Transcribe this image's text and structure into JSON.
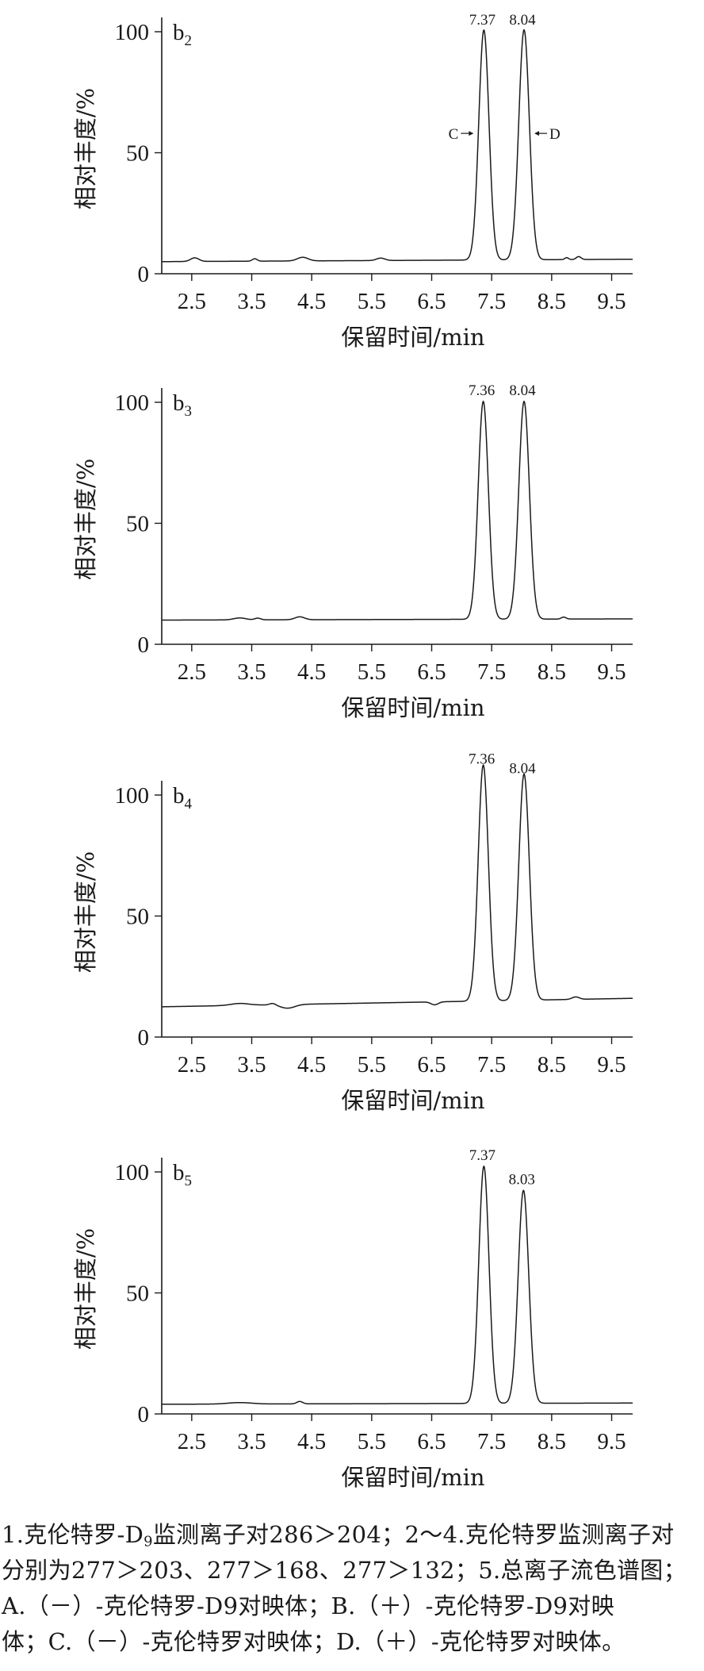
{
  "chart_data": [
    {
      "type": "line",
      "panel_label": "b",
      "panel_sub": "2",
      "xlabel": "保留时间/min",
      "ylabel": "相对丰度/%",
      "xlim": [
        2.0,
        9.85
      ],
      "ylim": [
        0,
        100
      ],
      "xticks": [
        2.5,
        3.5,
        4.5,
        5.5,
        6.5,
        7.5,
        8.5,
        9.5
      ],
      "xtick_labels": [
        "2.5",
        "3.5",
        "4.5",
        "5.5",
        "6.5",
        "7.5",
        "8.5",
        "9.5"
      ],
      "yticks": [
        0,
        50,
        100
      ],
      "ytick_labels": [
        "0",
        "50",
        "100"
      ],
      "baseline": 5,
      "end_level": 6,
      "bumps": [
        [
          2.55,
          1.5,
          0.07
        ],
        [
          3.55,
          1.0,
          0.04
        ],
        [
          4.35,
          1.5,
          0.09
        ],
        [
          5.65,
          1.0,
          0.07
        ],
        [
          8.75,
          0.8,
          0.03
        ],
        [
          8.95,
          1.2,
          0.04
        ]
      ],
      "peaks": [
        {
          "rt": 7.37,
          "label": "7.37",
          "height": 100
        },
        {
          "rt": 8.04,
          "label": "8.04",
          "height": 100
        }
      ],
      "annotations": [
        {
          "text": "C",
          "x": 7.37,
          "y": 58,
          "side": "left"
        },
        {
          "text": "D",
          "x": 8.04,
          "y": 58,
          "side": "right"
        }
      ]
    },
    {
      "type": "line",
      "panel_label": "b",
      "panel_sub": "3",
      "xlabel": "保留时间/min",
      "ylabel": "相对丰度/%",
      "xlim": [
        2.0,
        9.85
      ],
      "ylim": [
        0,
        100
      ],
      "xticks": [
        2.5,
        3.5,
        4.5,
        5.5,
        6.5,
        7.5,
        8.5,
        9.5
      ],
      "xtick_labels": [
        "2.5",
        "3.5",
        "4.5",
        "5.5",
        "6.5",
        "7.5",
        "8.5",
        "9.5"
      ],
      "yticks": [
        0,
        50,
        100
      ],
      "ytick_labels": [
        "0",
        "50",
        "100"
      ],
      "baseline": 10,
      "end_level": 10.5,
      "bumps": [
        [
          3.3,
          0.8,
          0.1
        ],
        [
          3.6,
          0.7,
          0.05
        ],
        [
          4.3,
          1.2,
          0.08
        ],
        [
          8.7,
          0.8,
          0.04
        ]
      ],
      "peaks": [
        {
          "rt": 7.36,
          "label": "7.36",
          "height": 100
        },
        {
          "rt": 8.04,
          "label": "8.04",
          "height": 100
        }
      ],
      "annotations": []
    },
    {
      "type": "line",
      "panel_label": "b",
      "panel_sub": "4",
      "xlabel": "保留时间/min",
      "ylabel": "相对丰度/%",
      "xlim": [
        2.0,
        9.85
      ],
      "ylim": [
        0,
        100
      ],
      "xticks": [
        2.5,
        3.5,
        4.5,
        5.5,
        6.5,
        7.5,
        8.5,
        9.5
      ],
      "xtick_labels": [
        "2.5",
        "3.5",
        "4.5",
        "5.5",
        "6.5",
        "7.5",
        "8.5",
        "9.5"
      ],
      "yticks": [
        0,
        50,
        100
      ],
      "ytick_labels": [
        "0",
        "50",
        "100"
      ],
      "baseline": 12.5,
      "end_level": 16,
      "bumps": [
        [
          3.3,
          0.8,
          0.15
        ],
        [
          3.85,
          0.7,
          0.05
        ],
        [
          4.1,
          -1.5,
          0.12
        ],
        [
          6.55,
          -1.2,
          0.06
        ],
        [
          8.9,
          1.0,
          0.06
        ]
      ],
      "peaks": [
        {
          "rt": 7.36,
          "label": "7.36",
          "height": 110
        },
        {
          "rt": 8.04,
          "label": "8.04",
          "height": 106
        }
      ],
      "annotations": []
    },
    {
      "type": "line",
      "panel_label": "b",
      "panel_sub": "5",
      "xlabel": "保留时间/min",
      "ylabel": "相对丰度/%",
      "xlim": [
        2.0,
        9.85
      ],
      "ylim": [
        0,
        100
      ],
      "xticks": [
        2.5,
        3.5,
        4.5,
        5.5,
        6.5,
        7.5,
        8.5,
        9.5
      ],
      "xtick_labels": [
        "2.5",
        "3.5",
        "4.5",
        "5.5",
        "6.5",
        "7.5",
        "8.5",
        "9.5"
      ],
      "yticks": [
        0,
        50,
        100
      ],
      "ytick_labels": [
        "0",
        "50",
        "100"
      ],
      "baseline": 4,
      "end_level": 4.5,
      "bumps": [
        [
          3.3,
          0.6,
          0.2
        ],
        [
          4.3,
          1.0,
          0.05
        ]
      ],
      "peaks": [
        {
          "rt": 7.37,
          "label": "7.37",
          "height": 102
        },
        {
          "rt": 8.03,
          "label": "8.03",
          "height": 92
        }
      ],
      "annotations": []
    }
  ],
  "caption": {
    "line1_a": "1.克伦特罗-D",
    "line1_sub": "9",
    "line1_b": "监测离子对286＞204；2～4.克伦特罗监测离子对",
    "line2": "分别为277＞203、277＞168、277＞132；5.总离子流色谱图；",
    "line3": "A.（－）-克伦特罗-D9对映体；B.（＋）-克伦特罗-D9对映",
    "line4": "体；C.（－）-克伦特罗对映体；D.（＋）-克伦特罗对映体。"
  }
}
